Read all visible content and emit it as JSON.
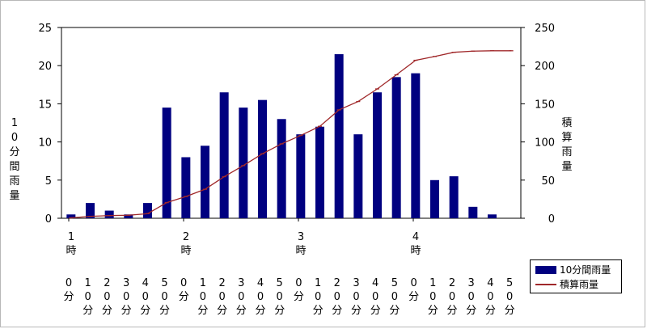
{
  "chart_data": {
    "type": "bar",
    "categories": [
      "0分",
      "10分",
      "20分",
      "30分",
      "40分",
      "50分",
      "0分",
      "10分",
      "20分",
      "30分",
      "40分",
      "50分",
      "0分",
      "10分",
      "20分",
      "30分",
      "40分",
      "50分",
      "0分",
      "10分",
      "20分",
      "30分",
      "40分",
      "50分"
    ],
    "hours": [
      {
        "label": "1",
        "suffix": "時",
        "index": 0
      },
      {
        "label": "2",
        "suffix": "時",
        "index": 6
      },
      {
        "label": "3",
        "suffix": "時",
        "index": 12
      },
      {
        "label": "4",
        "suffix": "時",
        "index": 18
      }
    ],
    "series": [
      {
        "name": "10分間雨量",
        "type": "bar",
        "axis": "left",
        "color": "#000080",
        "values": [
          0.5,
          2,
          1,
          0.5,
          2,
          14.5,
          8,
          9.5,
          16.5,
          14.5,
          15.5,
          13,
          11,
          12,
          21.5,
          11,
          16.5,
          18.5,
          19,
          5,
          5.5,
          1.5,
          0.5,
          0
        ]
      },
      {
        "name": "積算雨量",
        "type": "line",
        "axis": "right",
        "color": "#a0282a",
        "values": [
          0.5,
          2.5,
          3.5,
          4,
          6,
          20.5,
          28.5,
          38,
          54.5,
          69,
          84.5,
          97.5,
          108.5,
          120.5,
          142,
          153,
          169.5,
          188,
          207,
          212,
          217.5,
          219,
          219.5,
          219.5
        ]
      }
    ],
    "y_left": {
      "label": "10分間雨量",
      "min": 0,
      "max": 25,
      "ticks": [
        0,
        5,
        10,
        15,
        20,
        25
      ]
    },
    "y_right": {
      "label": "積算雨量",
      "min": 0,
      "max": 250,
      "ticks": [
        0,
        50,
        100,
        150,
        200,
        250
      ]
    },
    "grid": false,
    "legend_position": "bottom-right"
  }
}
